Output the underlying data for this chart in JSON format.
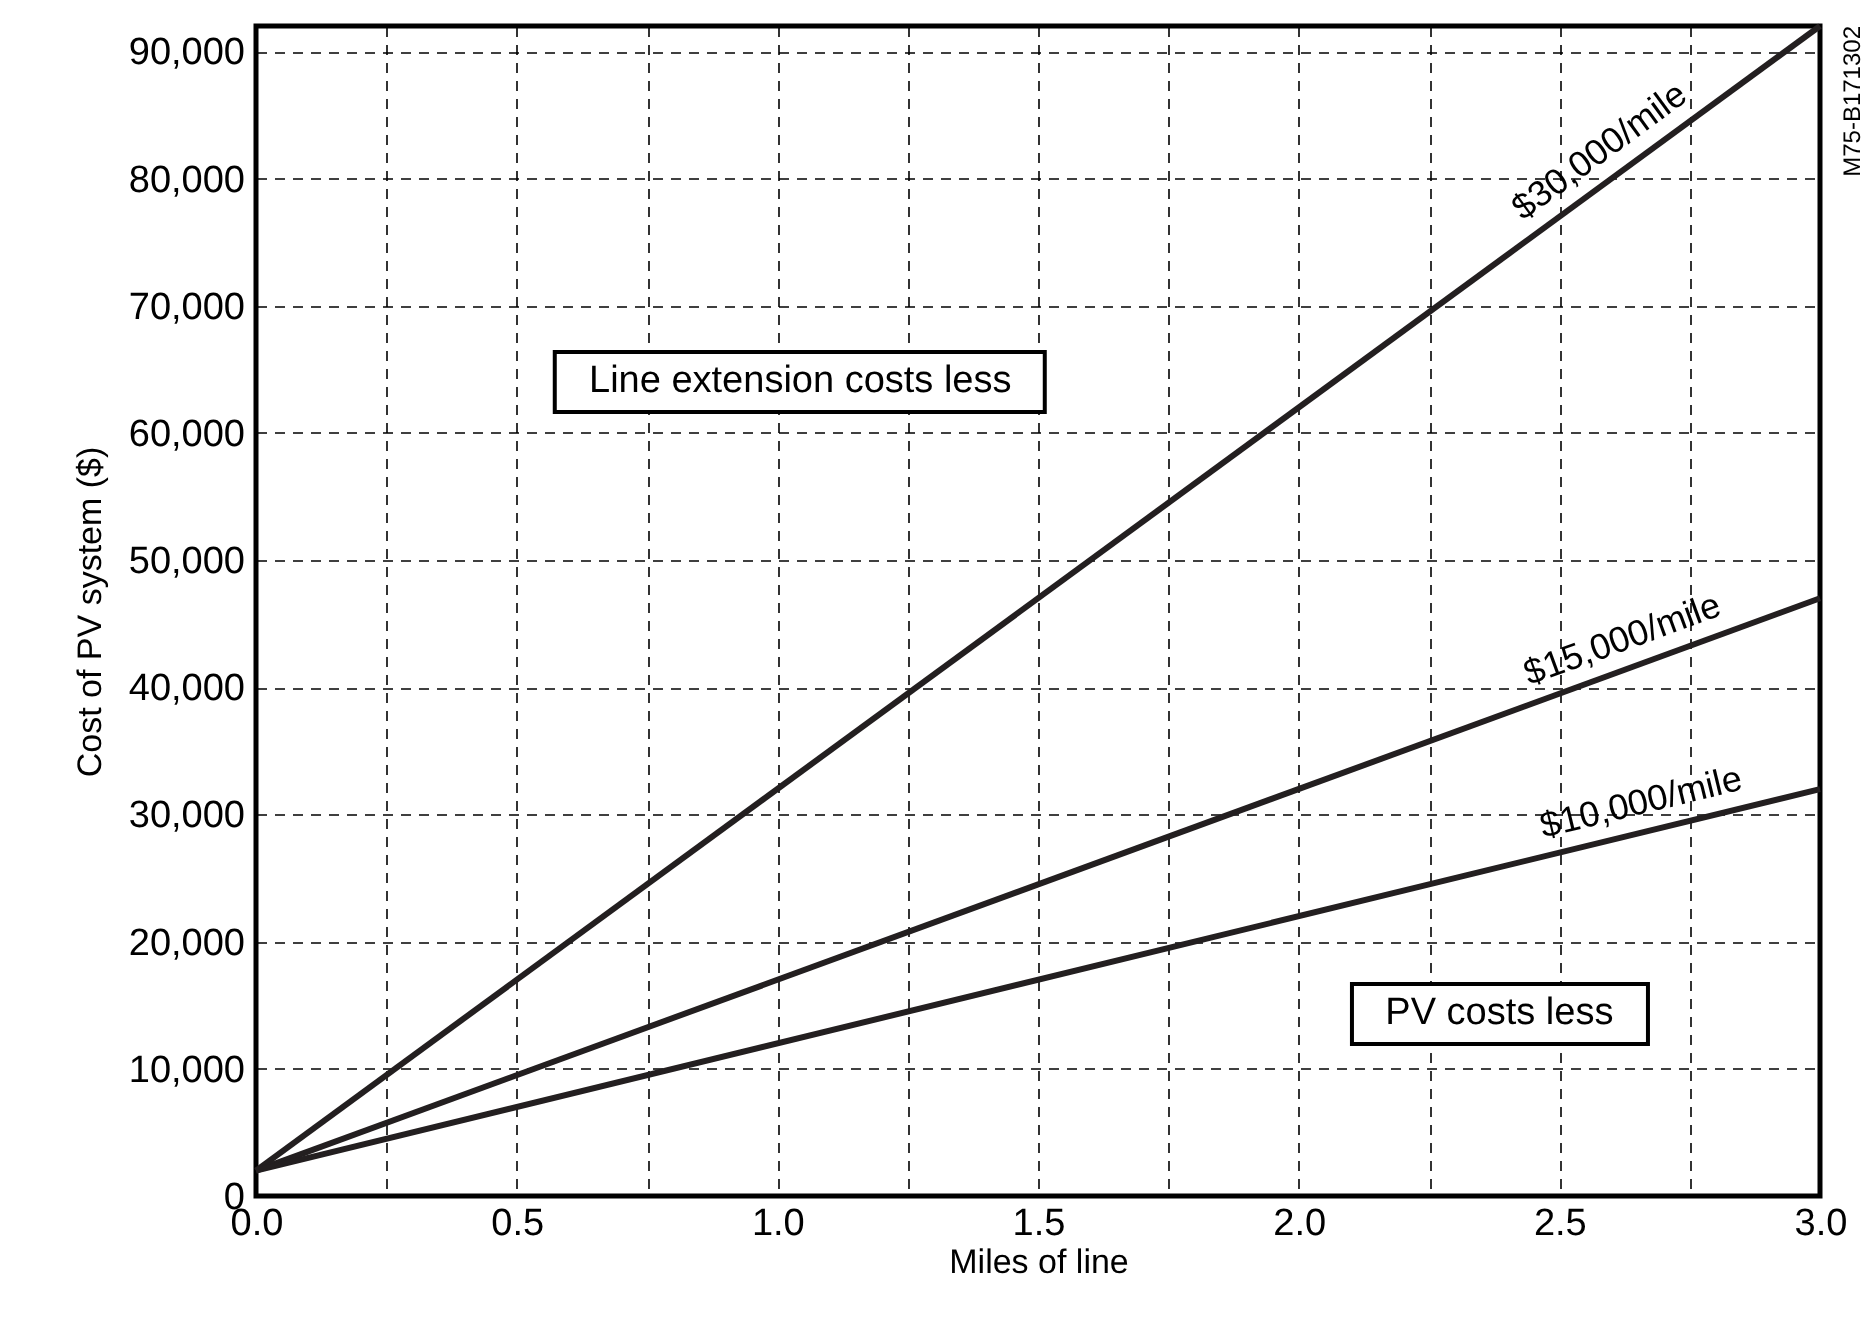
{
  "chart_data": {
    "type": "line",
    "xlabel": "Miles of line",
    "ylabel": "Cost of PV system ($)",
    "x": [
      0,
      3
    ],
    "series": [
      {
        "name": "$30,000/mile",
        "color": "#231f20",
        "values": [
          2000,
          92000
        ]
      },
      {
        "name": "$15,000/mile",
        "color": "#231f20",
        "values": [
          2000,
          47000
        ]
      },
      {
        "name": "$10,000/mile",
        "color": "#231f20",
        "values": [
          2000,
          32000
        ]
      }
    ],
    "xlim": [
      0,
      3
    ],
    "ylim": [
      0,
      92000
    ],
    "xticks": [
      {
        "value": 0,
        "label": "0.0"
      },
      {
        "value": 0.25,
        "label": null
      },
      {
        "value": 0.5,
        "label": "0.5"
      },
      {
        "value": 0.75,
        "label": null
      },
      {
        "value": 1,
        "label": "1.0"
      },
      {
        "value": 1.25,
        "label": null
      },
      {
        "value": 1.5,
        "label": "1.5"
      },
      {
        "value": 1.75,
        "label": null
      },
      {
        "value": 2,
        "label": "2.0"
      },
      {
        "value": 2.25,
        "label": null
      },
      {
        "value": 2.5,
        "label": "2.5"
      },
      {
        "value": 2.75,
        "label": null
      },
      {
        "value": 3,
        "label": "3.0"
      }
    ],
    "yticks": [
      0,
      {
        "value": 10000,
        "label": "10,000"
      },
      {
        "value": 20000,
        "label": "20,000"
      },
      {
        "value": 30000,
        "label": "30,000"
      },
      {
        "value": 40000,
        "label": "40,000"
      },
      {
        "value": 50000,
        "label": "50,000"
      },
      {
        "value": 60000,
        "label": "60,000"
      },
      {
        "value": 70000,
        "label": "70,000"
      },
      {
        "value": 80000,
        "label": "80,000"
      },
      {
        "value": 90000,
        "label": "90,000"
      }
    ],
    "grid": true,
    "line_style": "solid",
    "annotations": [
      "Line extension costs less",
      "PV costs less",
      "M75-B171302"
    ]
  }
}
